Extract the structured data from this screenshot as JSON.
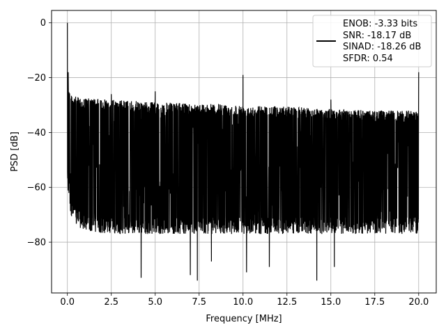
{
  "chart_data": {
    "type": "line",
    "title": "",
    "xlabel": "Frequency [MHz]",
    "ylabel": "PSD [dB]",
    "xlim": [
      -0.9,
      21.0
    ],
    "ylim": [
      -98.5,
      4.5
    ],
    "xticks": [
      0.0,
      2.5,
      5.0,
      7.5,
      10.0,
      12.5,
      15.0,
      17.5,
      20.0
    ],
    "xtick_labels": [
      "0.0",
      "2.5",
      "5.0",
      "7.5",
      "10.0",
      "12.5",
      "15.0",
      "17.5",
      "20.0"
    ],
    "yticks": [
      0,
      -20,
      -40,
      -60,
      -80
    ],
    "ytick_labels": [
      "0",
      "−20",
      "−40",
      "−60",
      "−80"
    ],
    "grid": true,
    "legend_position": "top-right",
    "line_color": "#000000",
    "legend": {
      "lines": [
        "ENOB: -3.33 bits",
        "SNR: -18.17 dB",
        "SINAD: -18.26 dB",
        "SFDR: 0.54"
      ]
    },
    "series": [
      {
        "x_range": [
          0.0,
          20.0
        ],
        "envelope": {
          "x": [
            0.0,
            0.2,
            0.5,
            1.0,
            2.5,
            5.0,
            7.5,
            10.0,
            12.5,
            15.0,
            17.5,
            20.0
          ],
          "upper": [
            -22,
            -26,
            -27,
            -27.5,
            -28,
            -29,
            -29.5,
            -30,
            -30.5,
            -31.5,
            -32,
            -32
          ],
          "lower": [
            -60,
            -70,
            -74,
            -76,
            -77,
            -77,
            -77,
            -77,
            -77,
            -77,
            -77,
            -77
          ]
        },
        "peaks": [
          {
            "x": 0.0,
            "y": 0
          },
          {
            "x": 0.05,
            "y": -18
          },
          {
            "x": 2.5,
            "y": -26
          },
          {
            "x": 5.0,
            "y": -25
          },
          {
            "x": 10.0,
            "y": -19
          },
          {
            "x": 15.0,
            "y": -28
          },
          {
            "x": 20.0,
            "y": -18
          }
        ],
        "dips": [
          {
            "x": 4.2,
            "y": -93
          },
          {
            "x": 7.0,
            "y": -92
          },
          {
            "x": 7.4,
            "y": -94
          },
          {
            "x": 10.2,
            "y": -91
          },
          {
            "x": 14.2,
            "y": -94
          },
          {
            "x": 15.2,
            "y": -89
          },
          {
            "x": 11.5,
            "y": -89
          },
          {
            "x": 8.2,
            "y": -87
          }
        ]
      }
    ]
  }
}
